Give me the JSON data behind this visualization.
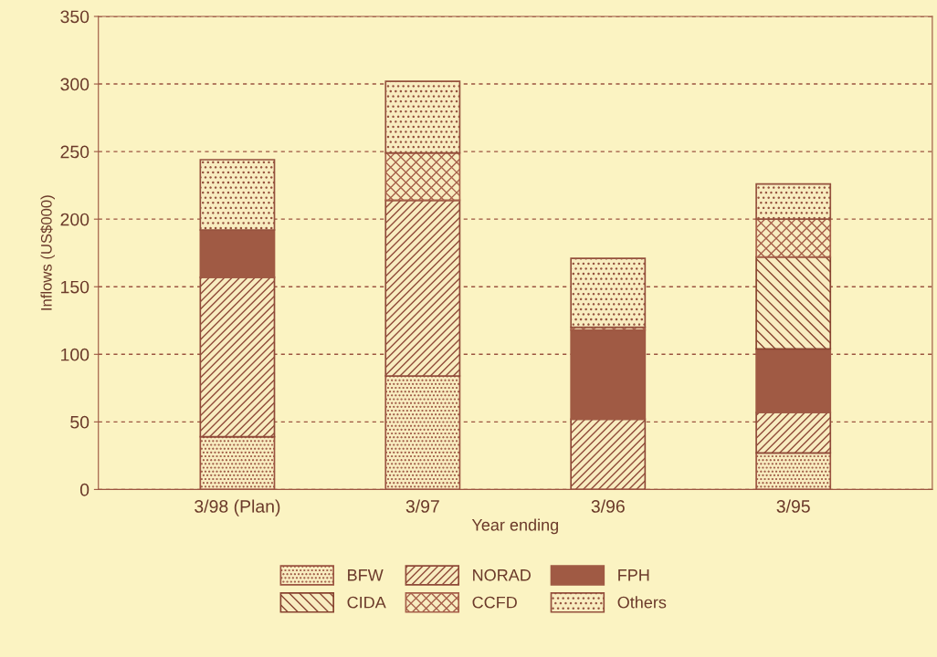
{
  "chart_data": {
    "type": "bar",
    "stacked": true,
    "xlabel": "Year ending",
    "ylabel": "Inflows (US$000)",
    "categories": [
      "3/98 (Plan)",
      "3/97",
      "3/96",
      "3/95"
    ],
    "series": [
      {
        "name": "BFW",
        "color": "#9b5440",
        "values": [
          39,
          84,
          0,
          27
        ]
      },
      {
        "name": "NORAD",
        "color": "#8f4a38",
        "values": [
          118,
          130,
          52,
          30
        ]
      },
      {
        "name": "FPH",
        "color": "#a05a44",
        "values": [
          35,
          0,
          66,
          47
        ]
      },
      {
        "name": "CIDA",
        "color": "#87432f",
        "values": [
          0,
          0,
          0,
          68
        ]
      },
      {
        "name": "CCFD",
        "color": "#a65f49",
        "values": [
          0,
          35,
          2,
          28
        ]
      },
      {
        "name": "Others",
        "color": "#94503c",
        "values": [
          52,
          53,
          51,
          26
        ]
      }
    ],
    "ylim": [
      0,
      350
    ],
    "yticks": [
      0,
      50,
      100,
      150,
      200,
      250,
      300,
      350
    ],
    "grid": "y",
    "legend": "bottom"
  }
}
